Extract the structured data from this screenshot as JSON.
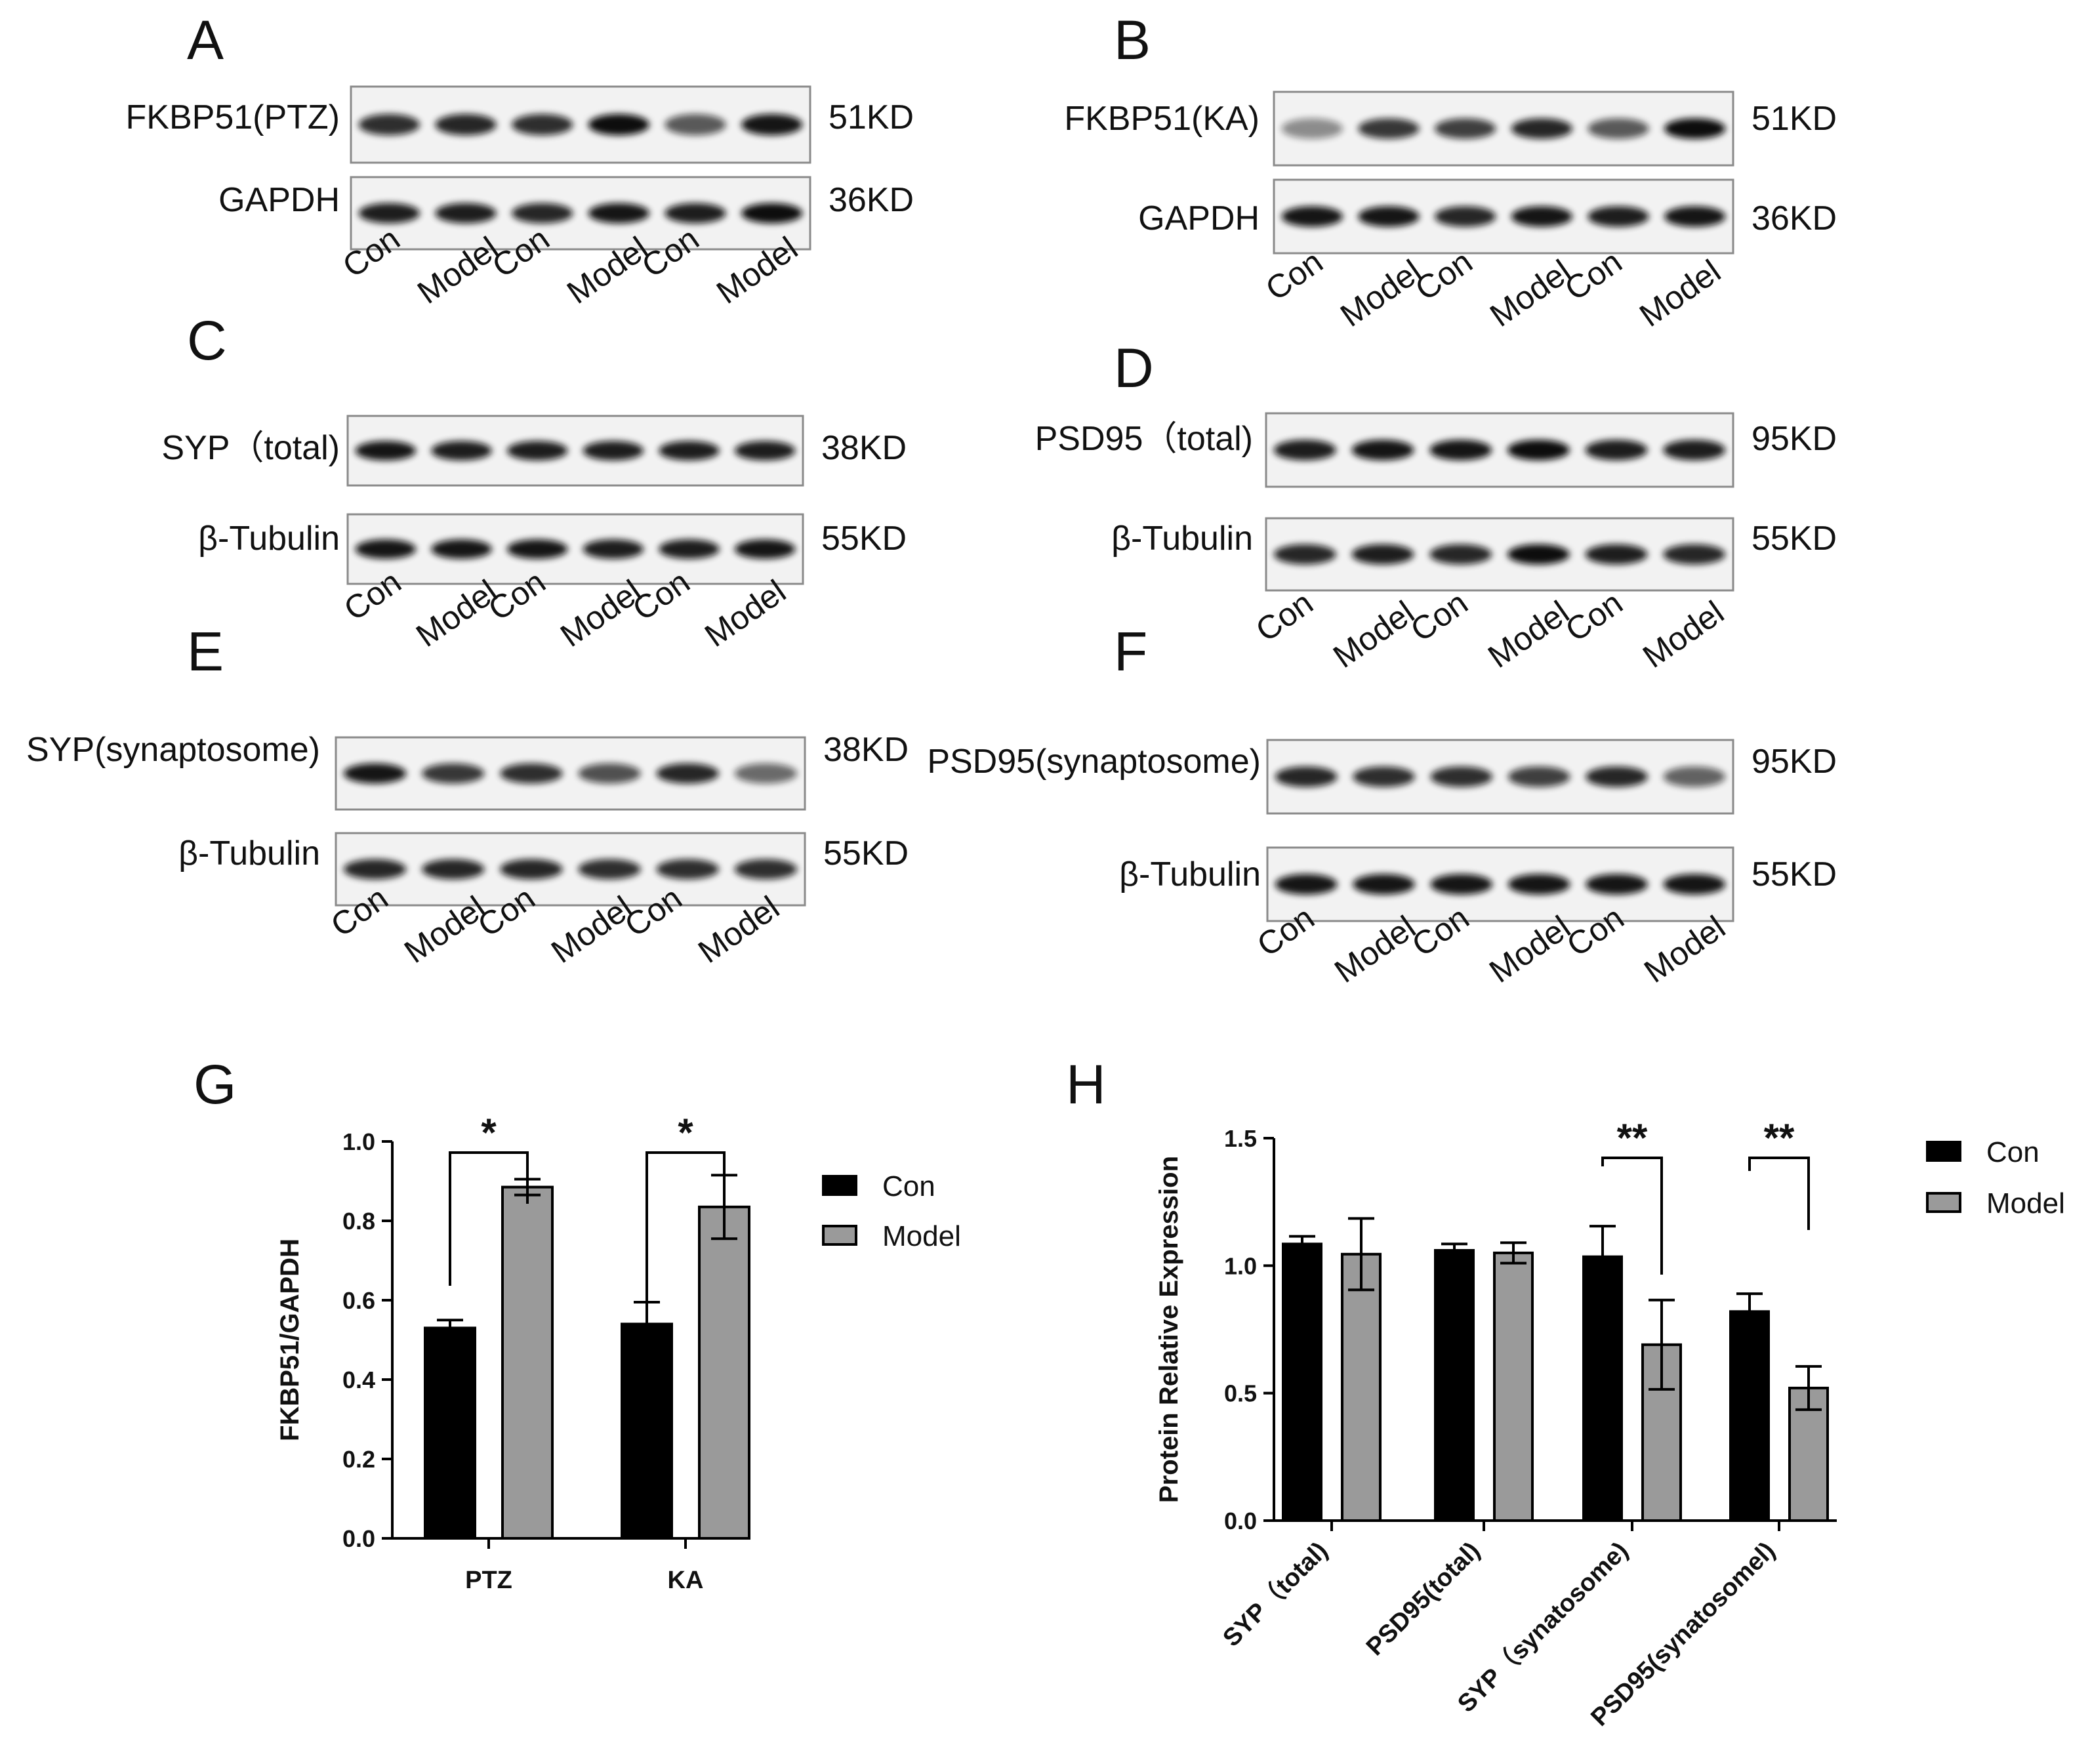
{
  "panel_labels": [
    "A",
    "B",
    "C",
    "D",
    "E",
    "F",
    "G",
    "H"
  ],
  "lanes": [
    "Con",
    "Model",
    "Con",
    "Model",
    "Con",
    "Model"
  ],
  "blots": {
    "A": {
      "rows": [
        {
          "label": "FKBP51(PTZ)",
          "kd": "51KD"
        },
        {
          "label": "GAPDH",
          "kd": "36KD"
        }
      ]
    },
    "B": {
      "rows": [
        {
          "label": "FKBP51(KA)",
          "kd": "51KD"
        },
        {
          "label": "GAPDH",
          "kd": "36KD"
        }
      ]
    },
    "C": {
      "rows": [
        {
          "label": "SYP（total)",
          "kd": "38KD"
        },
        {
          "label": "β-Tubulin",
          "kd": "55KD"
        }
      ]
    },
    "D": {
      "rows": [
        {
          "label": "PSD95（total)",
          "kd": "95KD"
        },
        {
          "label": "β-Tubulin",
          "kd": "55KD"
        }
      ]
    },
    "E": {
      "rows": [
        {
          "label": "SYP(synaptosome)",
          "kd": "38KD"
        },
        {
          "label": "β-Tubulin",
          "kd": "55KD"
        }
      ]
    },
    "F": {
      "rows": [
        {
          "label": "PSD95(synaptosome)",
          "kd": "95KD"
        },
        {
          "label": "β-Tubulin",
          "kd": "55KD"
        }
      ]
    }
  },
  "legend": {
    "con": "Con",
    "model": "Model"
  },
  "colors": {
    "con": "#000000",
    "model": "#9a9a9a",
    "band": "#111111"
  },
  "chart_data": [
    {
      "panel": "G",
      "type": "bar",
      "categories": [
        "PTZ",
        "KA"
      ],
      "series": [
        {
          "name": "Con",
          "values": [
            0.53,
            0.54
          ],
          "errors": [
            0.02,
            0.055
          ]
        },
        {
          "name": "Model",
          "values": [
            0.885,
            0.835
          ],
          "errors": [
            0.02,
            0.08
          ]
        }
      ],
      "ylabel": "FKBP51/GAPDH",
      "ylim": [
        0,
        1.0
      ],
      "yticks": [
        "0.0",
        "0.2",
        "0.4",
        "0.6",
        "0.8",
        "1.0"
      ],
      "significance": [
        {
          "category": "PTZ",
          "label": "*"
        },
        {
          "category": "KA",
          "label": "*"
        }
      ],
      "legend_position": "right",
      "grid": false
    },
    {
      "panel": "H",
      "type": "bar",
      "categories": [
        "SYP（total)",
        "PSD95(total)",
        "SYP（synatosome)",
        "PSD95(synatosomel)"
      ],
      "series": [
        {
          "name": "Con",
          "values": [
            1.085,
            1.06,
            1.035,
            0.82
          ],
          "errors": [
            0.03,
            0.025,
            0.12,
            0.07
          ]
        },
        {
          "name": "Model",
          "values": [
            1.045,
            1.05,
            0.69,
            0.52
          ],
          "errors": [
            0.14,
            0.04,
            0.175,
            0.085
          ]
        }
      ],
      "ylabel": "Protein Relative Expression",
      "ylim": [
        0,
        1.5
      ],
      "yticks": [
        "0.0",
        "0.5",
        "1.0",
        "1.5"
      ],
      "significance": [
        {
          "category": "SYP（synatosome)",
          "label": "**"
        },
        {
          "category": "PSD95(synatosomel)",
          "label": "**"
        }
      ],
      "legend_position": "right",
      "grid": false
    }
  ],
  "band_intensities": {
    "A": [
      [
        0.8,
        0.85,
        0.8,
        1.0,
        0.55,
        0.95
      ],
      [
        0.9,
        0.9,
        0.85,
        0.95,
        0.9,
        1.0
      ]
    ],
    "B": [
      [
        0.25,
        0.75,
        0.7,
        0.85,
        0.55,
        1.0
      ],
      [
        0.95,
        0.95,
        0.85,
        0.95,
        0.9,
        0.95
      ]
    ],
    "C": [
      [
        0.95,
        0.9,
        0.9,
        0.9,
        0.9,
        0.9
      ],
      [
        0.95,
        0.95,
        0.95,
        0.9,
        0.9,
        0.95
      ]
    ],
    "D": [
      [
        0.9,
        0.95,
        0.95,
        1.0,
        0.9,
        0.9
      ],
      [
        0.85,
        0.9,
        0.85,
        1.0,
        0.9,
        0.85
      ]
    ],
    "E": [
      [
        0.95,
        0.75,
        0.8,
        0.6,
        0.85,
        0.45
      ],
      [
        0.85,
        0.85,
        0.85,
        0.8,
        0.8,
        0.8
      ]
    ],
    "F": [
      [
        0.85,
        0.8,
        0.8,
        0.7,
        0.85,
        0.5
      ],
      [
        0.95,
        0.95,
        0.95,
        0.95,
        0.95,
        0.95
      ]
    ]
  }
}
